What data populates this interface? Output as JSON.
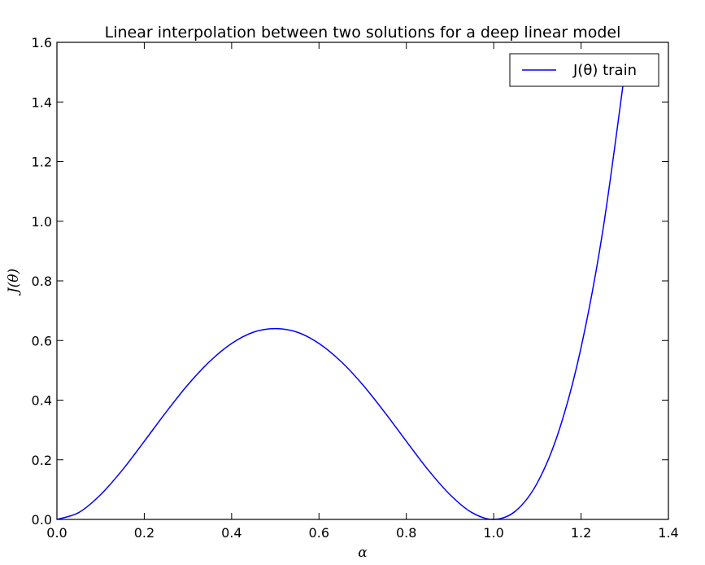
{
  "chart_data": {
    "type": "line",
    "title": "Linear interpolation between two solutions for a deep linear model",
    "xlabel": "α",
    "ylabel": "J(θ)",
    "xlim": [
      0.0,
      1.4
    ],
    "ylim": [
      0.0,
      1.6
    ],
    "xticks": [
      "0.0",
      "0.2",
      "0.4",
      "0.6",
      "0.8",
      "1.0",
      "1.2",
      "1.4"
    ],
    "yticks": [
      "0.0",
      "0.2",
      "0.4",
      "0.6",
      "0.8",
      "1.0",
      "1.2",
      "1.4",
      "1.6"
    ],
    "grid": false,
    "legend_position": "top-right",
    "series": [
      {
        "name": "J(θ) train",
        "color": "#0000ff",
        "x": [
          0.0,
          0.05,
          0.1,
          0.15,
          0.2,
          0.25,
          0.3,
          0.35,
          0.4,
          0.45,
          0.5,
          0.55,
          0.6,
          0.65,
          0.7,
          0.75,
          0.8,
          0.85,
          0.9,
          0.95,
          1.0,
          1.05,
          1.1,
          1.15,
          1.2,
          1.25,
          1.3
        ],
        "y": [
          0.0,
          0.023,
          0.083,
          0.166,
          0.262,
          0.36,
          0.452,
          0.53,
          0.59,
          0.628,
          0.64,
          0.628,
          0.59,
          0.53,
          0.452,
          0.36,
          0.262,
          0.166,
          0.083,
          0.023,
          0.0,
          0.028,
          0.123,
          0.3,
          0.576,
          0.97,
          1.5
        ]
      }
    ]
  }
}
